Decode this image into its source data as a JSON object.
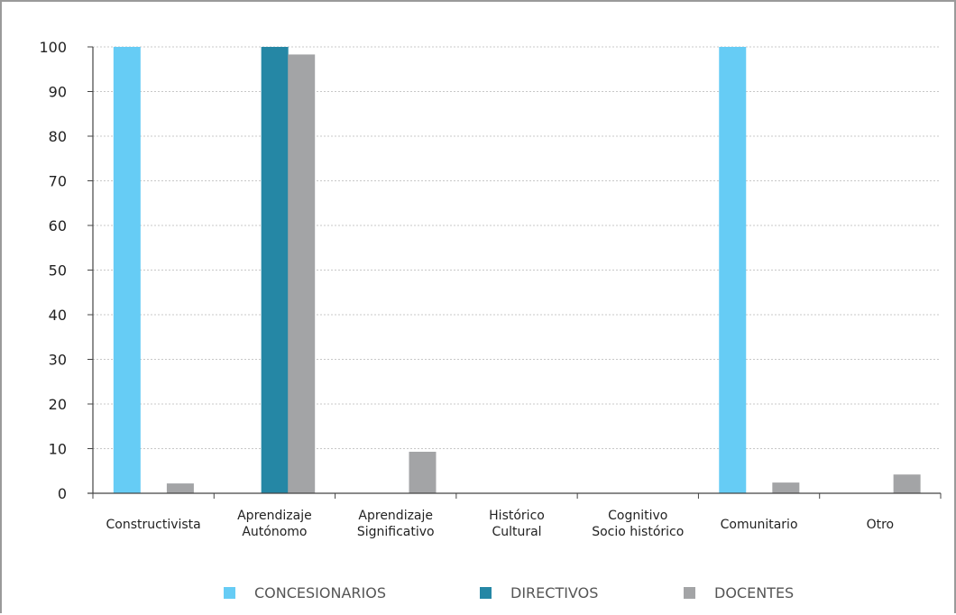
{
  "chart_data": {
    "type": "bar",
    "categories": [
      [
        "Constructivista"
      ],
      [
        "Aprendizaje",
        "Autónomo"
      ],
      [
        "Aprendizaje",
        "Significativo"
      ],
      [
        "Histórico",
        "Cultural"
      ],
      [
        "Cognitivo",
        "Socio histórico"
      ],
      [
        "Comunitario"
      ],
      [
        "Otro"
      ]
    ],
    "series": [
      {
        "name": "CONCESIONARIOS",
        "color": "#66CCF5",
        "values": [
          100,
          0,
          0,
          0,
          0,
          100,
          0
        ]
      },
      {
        "name": "DIRECTIVOS",
        "color": "#2587A5",
        "values": [
          0,
          100,
          0,
          0,
          0,
          0,
          0
        ]
      },
      {
        "name": "DOCENTES",
        "color": "#A3A4A6",
        "values": [
          2.2,
          98.3,
          9.3,
          0,
          0,
          2.4,
          4.2
        ]
      }
    ],
    "ylim": [
      0,
      100
    ],
    "yticks": [
      0,
      10,
      20,
      30,
      40,
      50,
      60,
      70,
      80,
      90,
      100
    ],
    "grid": true,
    "legend_position": "bottom"
  }
}
